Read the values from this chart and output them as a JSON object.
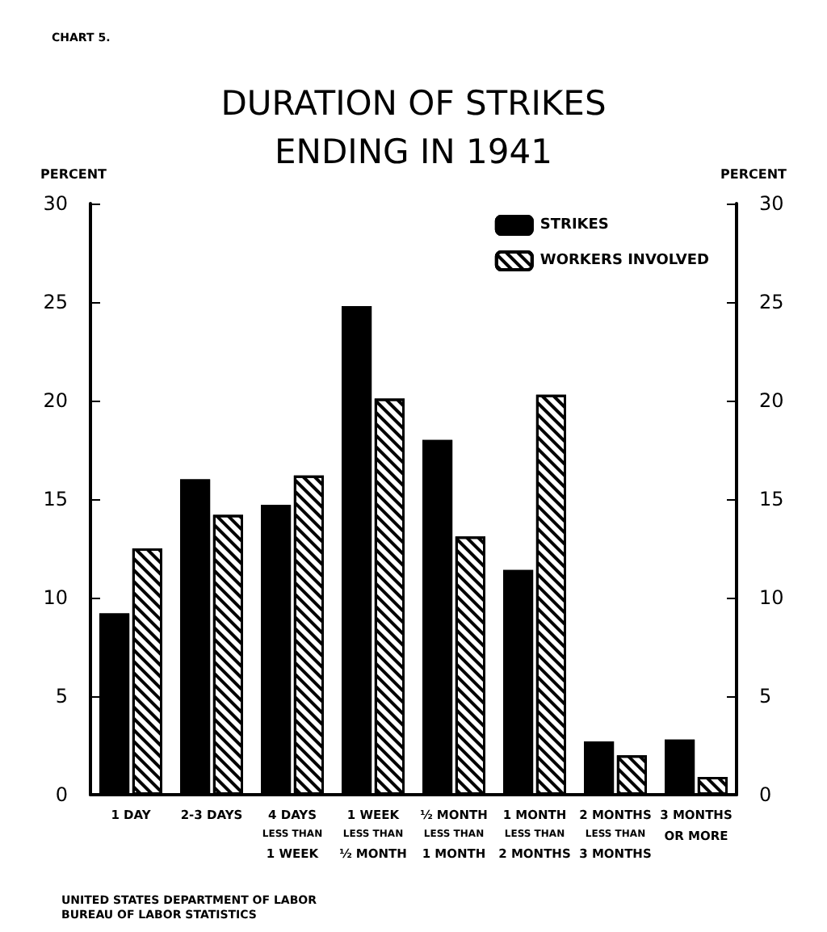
{
  "chart_data": {
    "type": "bar",
    "title": "DURATION OF STRIKES\nENDING IN 1941",
    "ylabel": "PERCENT",
    "y2label": "PERCENT",
    "annotations": [
      "CHART 5.",
      "UNITED STATES DEPARTMENT OF LABOR\nBUREAU OF LABOR STATISTICS"
    ],
    "categories": [
      "1 DAY",
      "2-3 DAYS",
      "4 DAYS\nLESS THAN\n1 WEEK",
      "1 WEEK\nLESS THAN\n½ MONTH",
      "½ MONTH\nLESS THAN\n1 MONTH",
      "1 MONTH\nLESS THAN\n2 MONTHS",
      "2 MONTHS\nLESS THAN\n3 MONTHS",
      "3 MONTHS\nOR MORE"
    ],
    "series": [
      {
        "name": "STRIKES",
        "color": "#000000",
        "values": [
          9.2,
          16.0,
          14.7,
          24.8,
          18.0,
          11.4,
          2.7,
          2.8
        ]
      },
      {
        "name": "WORKERS INVOLVED",
        "color": "#ffffff",
        "values": [
          12.5,
          14.2,
          16.2,
          20.1,
          13.1,
          20.3,
          2.0,
          0.9
        ]
      }
    ],
    "ylim": [
      0,
      30
    ],
    "yticks": [
      0,
      5,
      10,
      15,
      20,
      25,
      30
    ],
    "y2lim": [
      0,
      30
    ],
    "y2ticks": [
      0,
      5,
      10,
      15,
      20,
      25,
      30
    ],
    "grid": false,
    "legend": "top right"
  }
}
